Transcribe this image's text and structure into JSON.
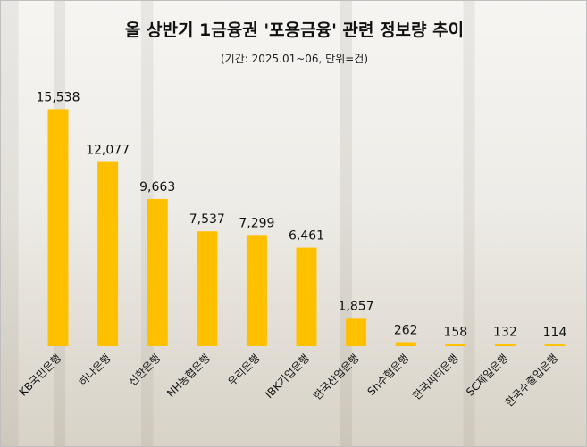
{
  "title": "올 상반기 1금융권 '포용금융' 관련 정보량 추이",
  "subtitle": "(기간: 2025.01~06, 단위=건)",
  "colors": {
    "bar": "#FFC000"
  },
  "chart_data": {
    "type": "bar",
    "title": "올 상반기 1금융권 '포용금융' 관련 정보량 추이",
    "subtitle": "(기간: 2025.01~06, 단위=건)",
    "categories": [
      "KB국민은행",
      "하나은행",
      "신한은행",
      "NH농협은행",
      "우리은행",
      "IBK기업은행",
      "한국산업은행",
      "Sh수협은행",
      "한국씨티은행",
      "SC제일은행",
      "한국수출입은행"
    ],
    "values": [
      15538,
      12077,
      9663,
      7537,
      7299,
      6461,
      1857,
      262,
      158,
      132,
      114
    ],
    "value_labels": [
      "15,538",
      "12,077",
      "9,663",
      "7,537",
      "7,299",
      "6,461",
      "1,857",
      "262",
      "158",
      "132",
      "114"
    ],
    "ylim": [
      0,
      16500
    ],
    "grid": false,
    "legend": "none"
  }
}
